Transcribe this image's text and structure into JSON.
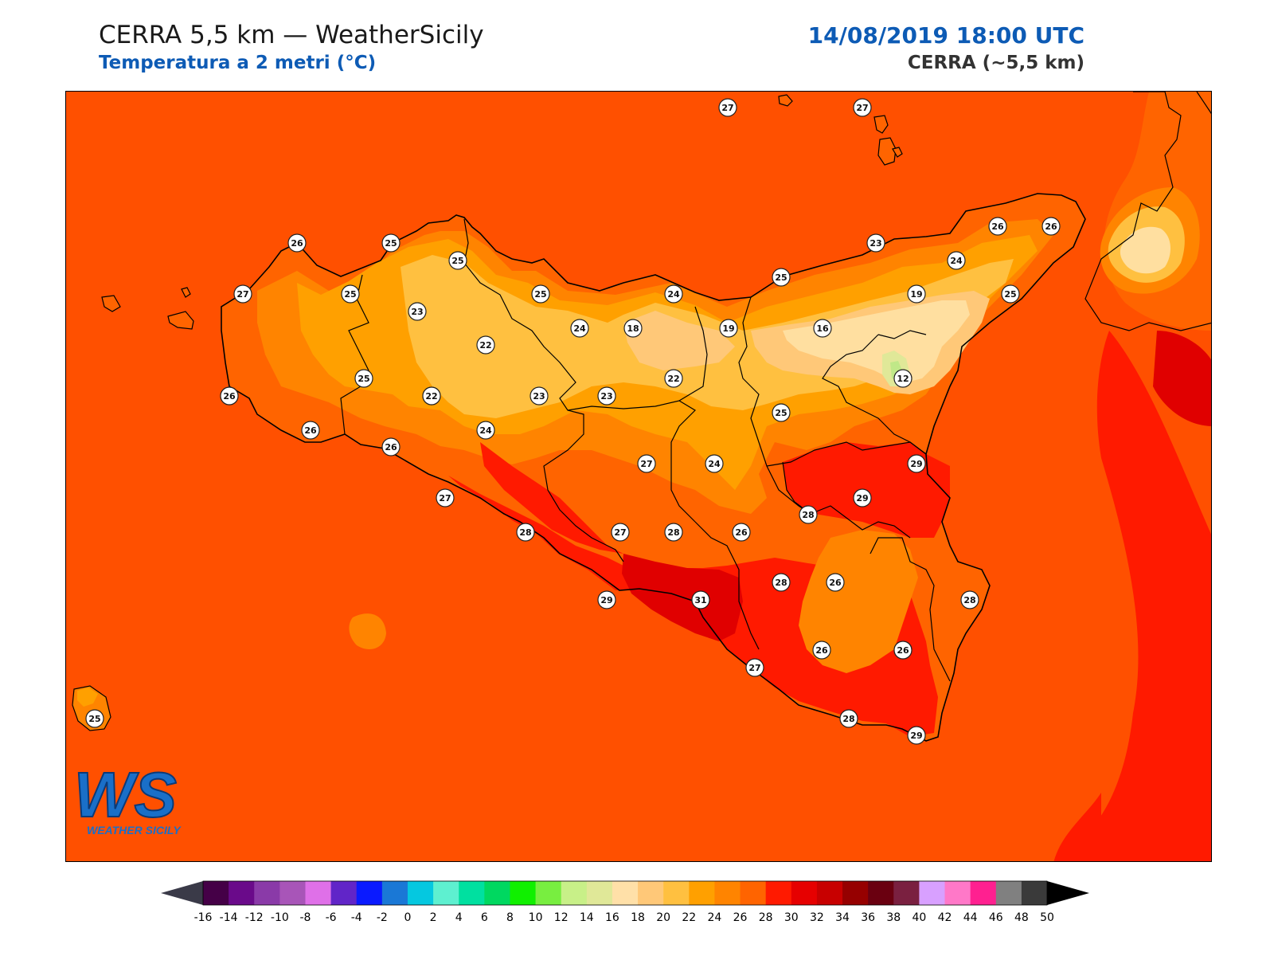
{
  "header": {
    "title": "CERRA 5,5 km — WeatherSicily",
    "subtitle": "Temperatura a 2 metri (°C)",
    "datetime": "14/08/2019 18:00 UTC",
    "model": "CERRA (~5,5 km)"
  },
  "logo": {
    "text": "WS",
    "caption": "WEATHER SICILY"
  },
  "colors": {
    "sea": "#ff5000",
    "t16": "#ffdfa0",
    "t18": "#ffc878",
    "t20": "#ffc040",
    "t22": "#ffa000",
    "t24": "#ff8400",
    "t26": "#ff6400",
    "t28": "#ff1a00",
    "t30": "#e00000",
    "t12": "#c0e888",
    "coast": "#000000",
    "title_blue": "#0d5bb5"
  },
  "stations": [
    "27",
    "27",
    "26",
    "25",
    "25",
    "27",
    "25",
    "23",
    "25",
    "24",
    "24",
    "18",
    "19",
    "16",
    "25",
    "23",
    "19",
    "26",
    "26",
    "24",
    "25",
    "22",
    "22",
    "12",
    "25",
    "25",
    "22",
    "23",
    "23",
    "26",
    "22",
    "24",
    "26",
    "24",
    "25",
    "27",
    "26",
    "27",
    "29",
    "29",
    "28",
    "27",
    "28",
    "26",
    "28",
    "26",
    "26",
    "28",
    "29",
    "31",
    "28",
    "27",
    "26",
    "26",
    "28",
    "29",
    "25"
  ],
  "colorbar": {
    "ticks": [
      "-16",
      "-14",
      "-12",
      "-10",
      "-8",
      "-6",
      "-4",
      "-2",
      "0",
      "2",
      "4",
      "6",
      "8",
      "10",
      "12",
      "14",
      "16",
      "18",
      "20",
      "22",
      "24",
      "26",
      "28",
      "30",
      "32",
      "34",
      "36",
      "38",
      "40",
      "42",
      "44",
      "46",
      "48",
      "50"
    ],
    "colors": [
      "#450047",
      "#6a0a8a",
      "#8a3aa8",
      "#a855b8",
      "#df70e8",
      "#6125c8",
      "#0a1aff",
      "#1a78d6",
      "#05c8e0",
      "#5ef0d0",
      "#00e0a0",
      "#00d860",
      "#10f000",
      "#78ee40",
      "#c8f088",
      "#e0e898",
      "#ffe0a8",
      "#ffc878",
      "#ffc040",
      "#ffa000",
      "#ff8400",
      "#ff6400",
      "#ff1a00",
      "#e60000",
      "#c80000",
      "#960000",
      "#6a0010",
      "#7a2040",
      "#d8a0ff",
      "#ff78c8",
      "#ff2090",
      "#808080",
      "#3a3a3a"
    ],
    "under_color": "#3a3a48",
    "over_color": "#000000"
  }
}
